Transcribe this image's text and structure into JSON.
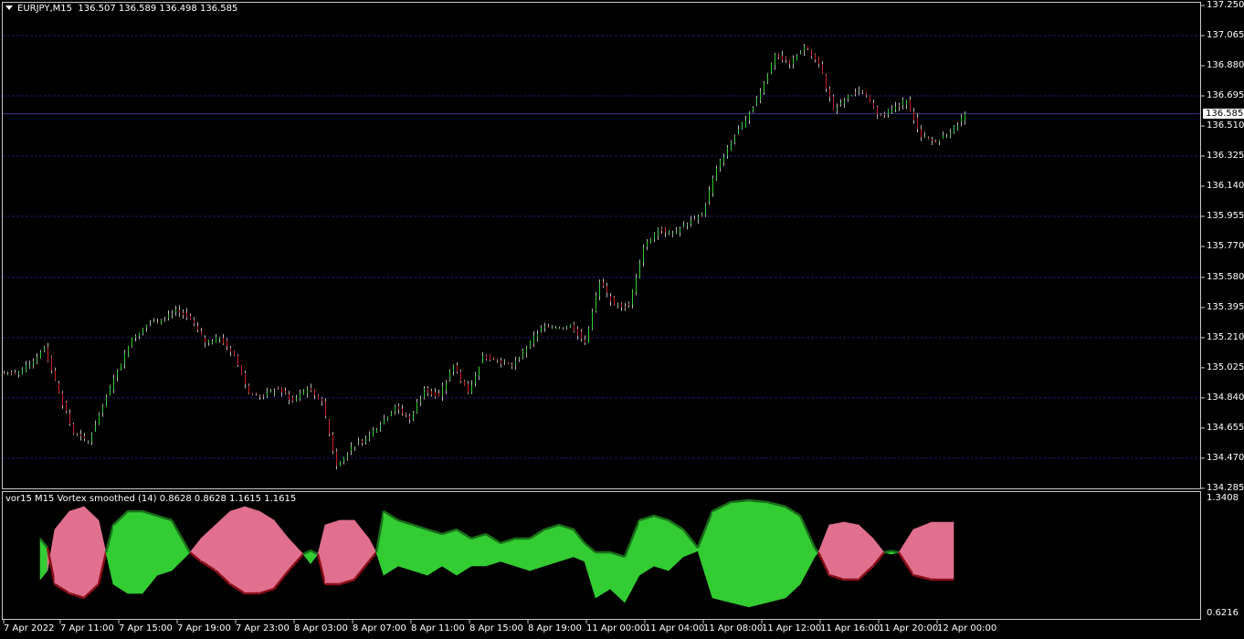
{
  "header": {
    "symbol": "EURJPY,M15",
    "ohlc": "136.507 136.589 136.498 136.585"
  },
  "indicator": {
    "title": "vor15 M15 Vortex smoothed (14) 0.8628 0.8628 1.1615 1.1615",
    "scale_max": "1.3408",
    "scale_min": "0.6216",
    "colors": {
      "plus_above": "#33cc33",
      "plus_above_edge": "#1a6e1a",
      "minus_above": "#e0708e",
      "minus_above_edge": "#8b0f18"
    }
  },
  "chart_data": {
    "type": "candlestick",
    "timeframe": "M15",
    "ylim": [
      134.285,
      137.25
    ],
    "y_ticks": [
      "137.250",
      "137.065",
      "136.880",
      "136.695",
      "136.510",
      "136.325",
      "136.140",
      "135.955",
      "135.770",
      "135.580",
      "135.395",
      "135.210",
      "135.025",
      "134.840",
      "134.655",
      "134.470",
      "134.285"
    ],
    "current_price": "136.585",
    "x_ticks": [
      "7 Apr 2022",
      "7 Apr 11:00",
      "7 Apr 15:00",
      "7 Apr 19:00",
      "7 Apr 23:00",
      "8 Apr 03:00",
      "8 Apr 07:00",
      "8 Apr 11:00",
      "8 Apr 15:00",
      "8 Apr 19:00",
      "11 Apr 00:00",
      "11 Apr 04:00",
      "11 Apr 08:00",
      "11 Apr 12:00",
      "11 Apr 16:00",
      "11 Apr 20:00",
      "12 Apr 00:00"
    ],
    "grid": true,
    "colors": {
      "background": "#000000",
      "grid": "#1a1a6e",
      "bull_body": "#33cc33",
      "bear_body": "#cc2020",
      "wick": "#b4b4b4"
    },
    "first_open": 134.99,
    "hourly_closes": [
      134.985,
      135.04,
      135.15,
      134.87,
      134.62,
      134.57,
      134.79,
      135.01,
      135.21,
      135.29,
      135.32,
      135.38,
      135.32,
      135.18,
      135.21,
      135.1,
      134.87,
      134.85,
      134.9,
      134.82,
      134.9,
      134.82,
      134.42,
      134.54,
      134.59,
      134.68,
      134.79,
      134.71,
      134.9,
      134.85,
      135.04,
      134.87,
      135.1,
      135.07,
      135.04,
      135.15,
      135.27,
      135.27,
      135.29,
      135.18,
      135.55,
      135.41,
      135.41,
      135.77,
      135.88,
      135.85,
      135.91,
      135.97,
      136.25,
      136.41,
      136.55,
      136.72,
      136.95,
      136.89,
      137.0,
      136.89,
      136.61,
      136.7,
      136.72,
      136.58,
      136.61,
      136.67,
      136.44,
      136.41,
      136.47,
      136.585
    ],
    "vortex": {
      "bar_index": [
        10,
        12,
        14,
        18,
        22,
        26,
        28,
        30,
        34,
        38,
        42,
        46,
        51,
        54,
        58,
        62,
        66,
        70,
        74,
        78,
        82,
        84,
        86,
        88,
        92,
        96,
        100,
        102,
        104,
        108,
        112,
        116,
        120,
        124,
        128,
        132,
        136,
        140,
        144,
        148,
        152,
        156,
        159,
        162,
        166,
        170,
        174,
        178,
        182,
        186,
        190,
        194,
        199,
        204,
        209,
        214,
        218,
        222,
        223,
        226,
        230,
        234,
        238,
        241,
        243,
        245,
        249,
        254,
        260
      ],
      "vi_plus": [
        1.088,
        1.03,
        0.8,
        0.742,
        0.714,
        0.8,
        1.0,
        1.174,
        1.26,
        1.26,
        1.232,
        1.203,
        1.0,
        0.944,
        0.886,
        0.8,
        0.742,
        0.742,
        0.771,
        0.886,
        0.99,
        1.013,
        0.99,
        0.8,
        0.8,
        0.829,
        0.944,
        1.0,
        1.26,
        1.203,
        1.174,
        1.145,
        1.116,
        1.145,
        1.088,
        1.116,
        1.059,
        1.088,
        1.088,
        1.145,
        1.174,
        1.145,
        1.059,
        1.001,
        1.001,
        0.973,
        1.203,
        1.232,
        1.203,
        1.145,
        1.03,
        1.26,
        1.318,
        1.329,
        1.318,
        1.289,
        1.232,
        1.03,
        1.0,
        0.857,
        0.829,
        0.829,
        0.915,
        1.0,
        1.01,
        1.0,
        0.857,
        0.829,
        0.829
      ],
      "vi_minus": [
        0.829,
        0.886,
        1.145,
        1.26,
        1.289,
        1.203,
        1.0,
        0.8,
        0.742,
        0.742,
        0.857,
        0.886,
        1.0,
        1.088,
        1.174,
        1.26,
        1.289,
        1.26,
        1.203,
        1.088,
        0.99,
        0.93,
        0.99,
        1.174,
        1.203,
        1.203,
        1.088,
        1.0,
        0.857,
        0.915,
        0.886,
        0.857,
        0.915,
        0.857,
        0.915,
        0.915,
        0.944,
        0.915,
        0.886,
        0.915,
        0.944,
        0.973,
        0.944,
        0.714,
        0.771,
        0.685,
        0.857,
        0.915,
        0.886,
        0.973,
        1.01,
        0.714,
        0.685,
        0.657,
        0.685,
        0.714,
        0.8,
        0.973,
        1.0,
        1.174,
        1.191,
        1.174,
        1.088,
        1.0,
        0.99,
        1.0,
        1.145,
        1.191,
        1.191
      ]
    }
  }
}
